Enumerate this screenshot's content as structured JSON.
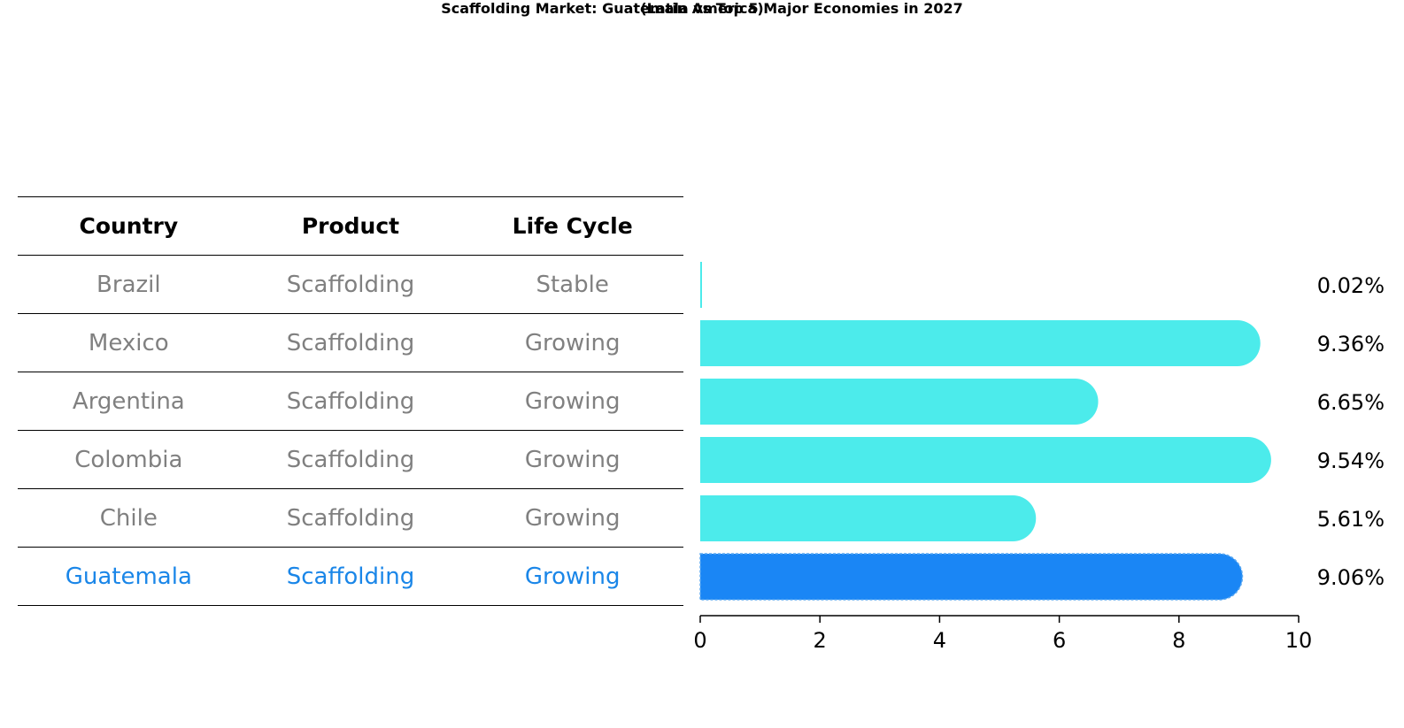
{
  "title": "Scaffolding Market: Guatemala vs Top 5 Major Economies in 2027",
  "subtitle": "(Latin America)",
  "table": {
    "headers": [
      "Country",
      "Product",
      "Life Cycle"
    ],
    "rows": [
      {
        "country": "Brazil",
        "product": "Scaffolding",
        "life_cycle": "Stable"
      },
      {
        "country": "Mexico",
        "product": "Scaffolding",
        "life_cycle": "Growing"
      },
      {
        "country": "Argentina",
        "product": "Scaffolding",
        "life_cycle": "Growing"
      },
      {
        "country": "Colombia",
        "product": "Scaffolding",
        "life_cycle": "Growing"
      },
      {
        "country": "Chile",
        "product": "Scaffolding",
        "life_cycle": "Growing"
      },
      {
        "country": "Guatemala",
        "product": "Scaffolding",
        "life_cycle": "Growing"
      }
    ]
  },
  "colors": {
    "bar": "#4cebeb",
    "highlight_bar": "#1a86f5",
    "highlight_text": "#1a86e8",
    "row_text": "#808080"
  },
  "chart_data": {
    "type": "bar",
    "orientation": "horizontal",
    "categories": [
      "Brazil",
      "Mexico",
      "Argentina",
      "Colombia",
      "Chile",
      "Guatemala"
    ],
    "values": [
      0.02,
      9.36,
      6.65,
      9.54,
      5.61,
      9.06
    ],
    "value_labels": [
      "0.02%",
      "9.36%",
      "6.65%",
      "9.54%",
      "5.61%",
      "9.06%"
    ],
    "highlight": "Guatemala",
    "xlim": [
      0,
      10
    ],
    "xticks": [
      0,
      2,
      4,
      6,
      8,
      10
    ],
    "xtick_labels": [
      "0",
      "2",
      "4",
      "6",
      "8",
      "10"
    ],
    "grid": false
  }
}
